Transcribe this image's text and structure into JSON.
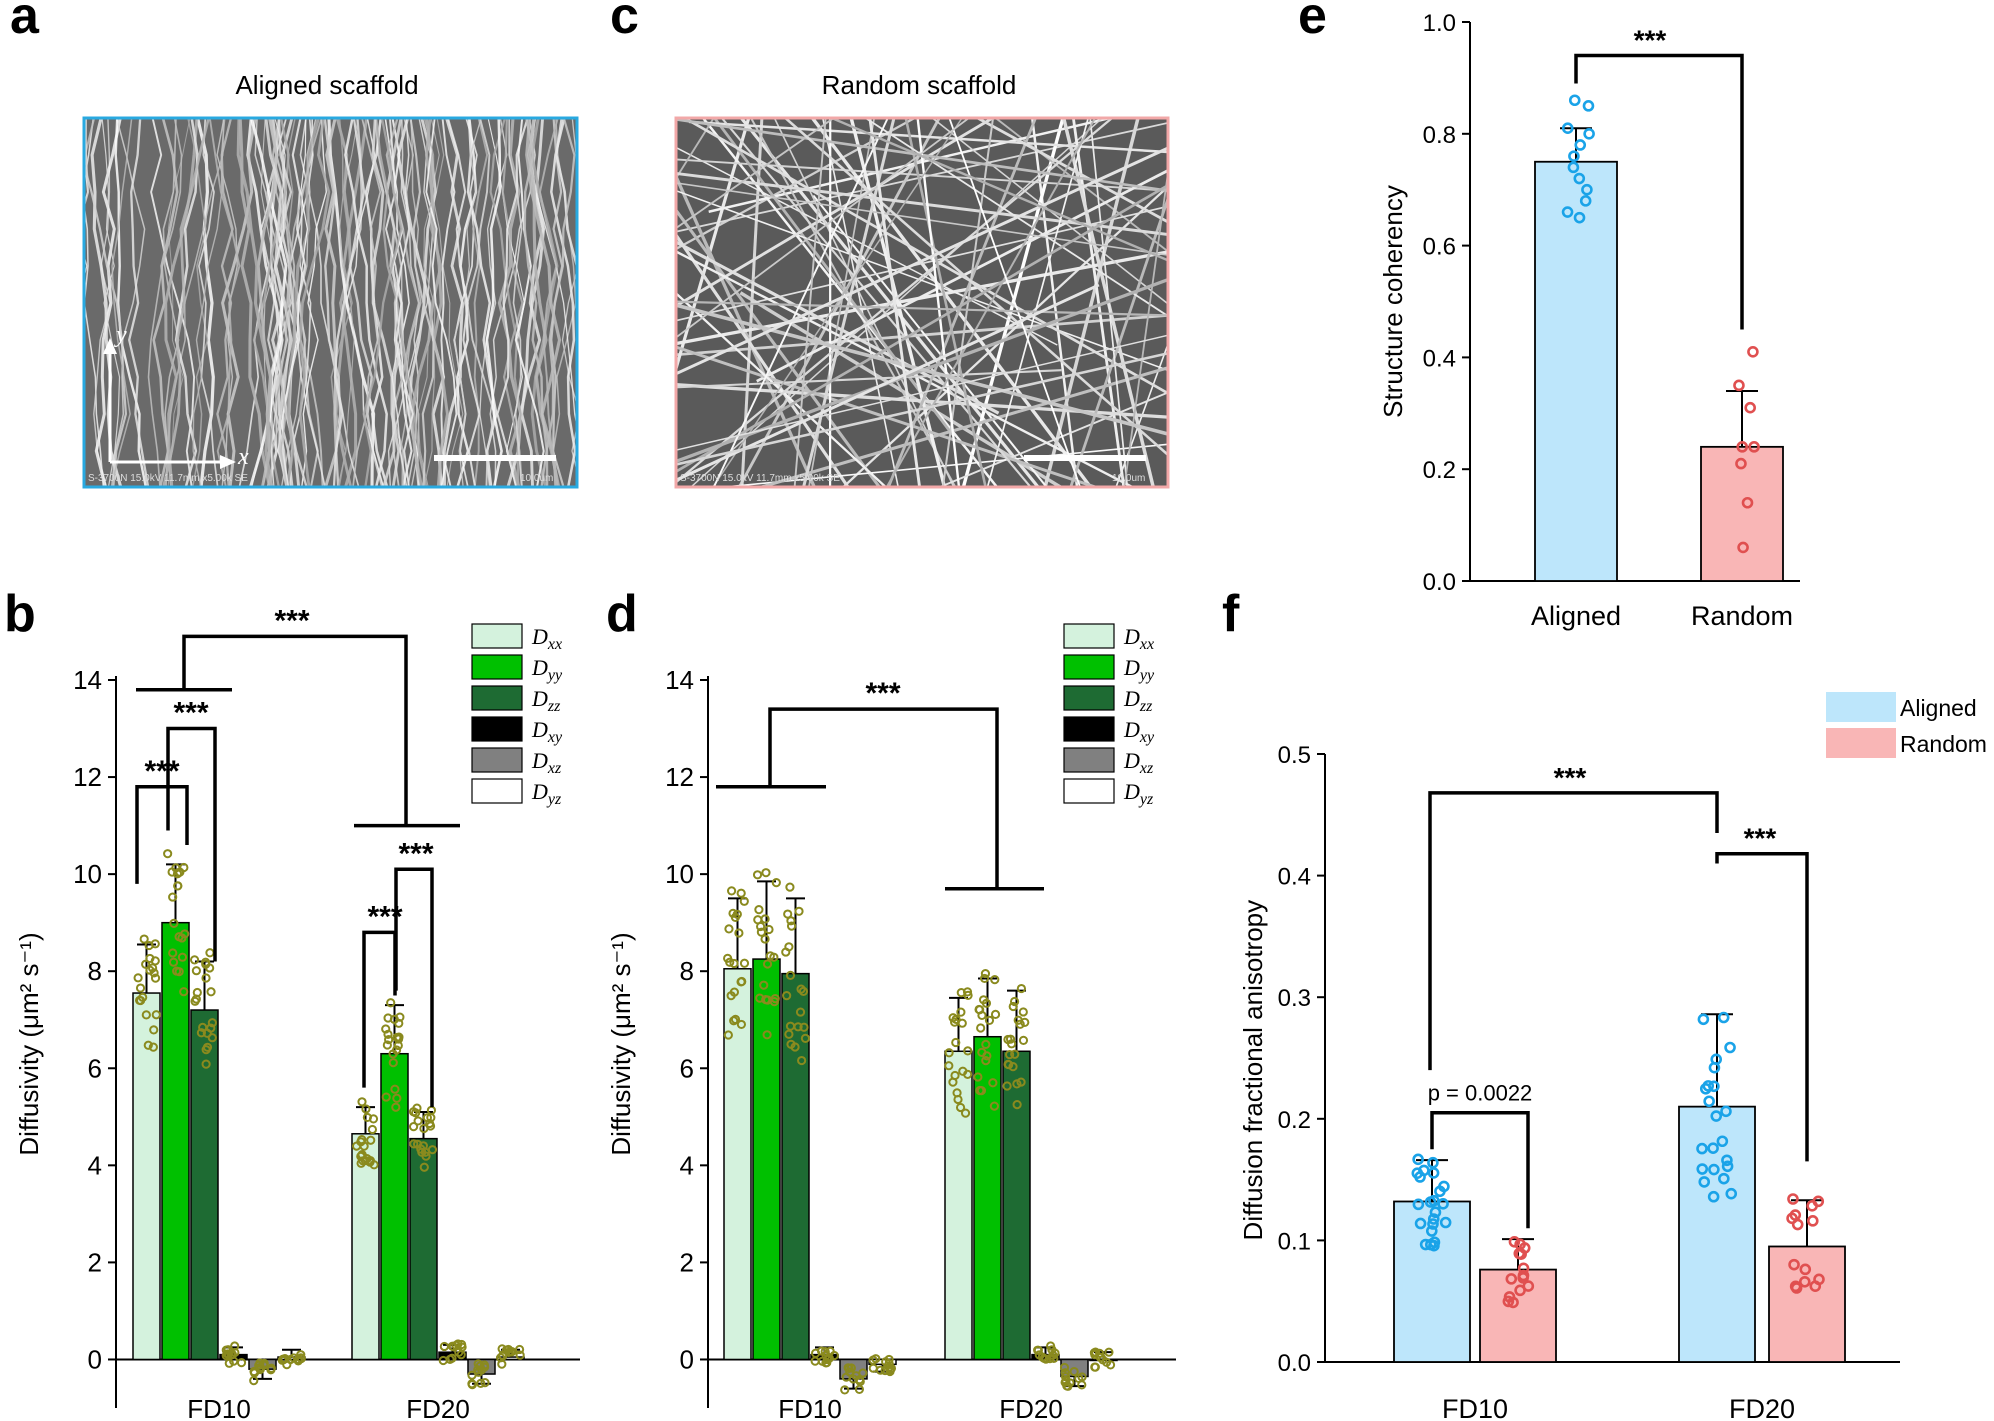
{
  "panels": {
    "a": {
      "letter": "a",
      "title": "Aligned scaffold",
      "x_label": "x",
      "y_label": "y",
      "sem_caption": "S-3700N 15.0kV 11.7mm x5.00k SE",
      "scale_text": "10.0um",
      "border_color": "#29a9e0"
    },
    "c": {
      "letter": "c",
      "title": "Random scaffold",
      "sem_caption": "S-3700N 15.0kV 11.7mm x5.00k SE",
      "scale_text": "10.0um",
      "border_color": "#f2a8a8"
    },
    "b": {
      "letter": "b"
    },
    "d": {
      "letter": "d"
    },
    "e": {
      "letter": "e"
    },
    "f": {
      "letter": "f"
    }
  },
  "legend_diffusivity": [
    {
      "base": "D",
      "sub": "xx",
      "color": "#d4f2dd"
    },
    {
      "base": "D",
      "sub": "yy",
      "color": "#00c000"
    },
    {
      "base": "D",
      "sub": "zz",
      "color": "#1e6b33"
    },
    {
      "base": "D",
      "sub": "xy",
      "color": "#000000"
    },
    {
      "base": "D",
      "sub": "xz",
      "color": "#808080"
    },
    {
      "base": "D",
      "sub": "yz",
      "color": "#ffffff"
    }
  ],
  "chart_data": [
    {
      "id": "b",
      "type": "bar",
      "ylabel": "Diffusivity (μm² s⁻¹)",
      "ylim": [
        -1,
        14
      ],
      "yticks": [
        0,
        2,
        4,
        6,
        8,
        10,
        12,
        14
      ],
      "categories": [
        "FD10",
        "FD20"
      ],
      "series": [
        {
          "name": "Dxx",
          "values": [
            7.55,
            4.65
          ],
          "errors": [
            1.0,
            0.55
          ]
        },
        {
          "name": "Dyy",
          "values": [
            9.0,
            6.3
          ],
          "errors": [
            1.2,
            1.0
          ]
        },
        {
          "name": "Dzz",
          "values": [
            7.2,
            4.55
          ],
          "errors": [
            1.0,
            0.55
          ]
        },
        {
          "name": "Dxy",
          "values": [
            0.1,
            0.15
          ],
          "errors": [
            0.15,
            0.15
          ]
        },
        {
          "name": "Dxz",
          "values": [
            -0.2,
            -0.3
          ],
          "errors": [
            0.2,
            0.2
          ]
        },
        {
          "name": "Dyz",
          "values": [
            0.05,
            0.05
          ],
          "errors": [
            0.15,
            0.15
          ]
        }
      ],
      "significance": [
        "***",
        "***",
        "***",
        "***",
        "***"
      ]
    },
    {
      "id": "d",
      "type": "bar",
      "ylabel": "Diffusivity (μm² s⁻¹)",
      "ylim": [
        -1,
        14
      ],
      "yticks": [
        0,
        2,
        4,
        6,
        8,
        10,
        12,
        14
      ],
      "categories": [
        "FD10",
        "FD20"
      ],
      "series": [
        {
          "name": "Dxx",
          "values": [
            8.05,
            6.35
          ],
          "errors": [
            1.45,
            1.1
          ]
        },
        {
          "name": "Dyy",
          "values": [
            8.25,
            6.65
          ],
          "errors": [
            1.6,
            1.2
          ]
        },
        {
          "name": "Dzz",
          "values": [
            7.95,
            6.35
          ],
          "errors": [
            1.55,
            1.25
          ]
        },
        {
          "name": "Dxy",
          "values": [
            0.1,
            0.1
          ],
          "errors": [
            0.15,
            0.15
          ]
        },
        {
          "name": "Dxz",
          "values": [
            -0.4,
            -0.35
          ],
          "errors": [
            0.2,
            0.2
          ]
        },
        {
          "name": "Dyz",
          "values": [
            -0.1,
            0.0
          ],
          "errors": [
            0.15,
            0.15
          ]
        }
      ],
      "significance": [
        "***"
      ]
    },
    {
      "id": "e",
      "type": "bar",
      "ylabel": "Structure coherency",
      "ylim": [
        0,
        1.0
      ],
      "yticks": [
        "0.0",
        "0.2",
        "0.4",
        "0.6",
        "0.8",
        "1.0"
      ],
      "categories": [
        "Aligned",
        "Random"
      ],
      "values": [
        0.75,
        0.24
      ],
      "errors": [
        0.06,
        0.1
      ],
      "colors": [
        "#bde6fb",
        "#f9b6b6"
      ],
      "points": [
        [
          0.86,
          0.85,
          0.81,
          0.8,
          0.78,
          0.76,
          0.74,
          0.72,
          0.7,
          0.68,
          0.66,
          0.65
        ],
        [
          0.41,
          0.35,
          0.31,
          0.24,
          0.24,
          0.21,
          0.14,
          0.06
        ]
      ],
      "significance": [
        "***"
      ]
    },
    {
      "id": "f",
      "type": "bar",
      "ylabel": "Diffusion fractional anisotropy",
      "ylim": [
        0,
        0.5
      ],
      "yticks": [
        "0.0",
        "0.1",
        "0.2",
        "0.3",
        "0.4",
        "0.5"
      ],
      "categories": [
        "FD10",
        "FD20"
      ],
      "legend": [
        {
          "name": "Aligned",
          "color": "#bde6fb"
        },
        {
          "name": "Random",
          "color": "#f9b6b6"
        }
      ],
      "series": [
        {
          "name": "Aligned",
          "values": [
            0.132,
            0.21
          ],
          "errors": [
            0.034,
            0.076
          ]
        },
        {
          "name": "Random",
          "values": [
            0.076,
            0.095
          ],
          "errors": [
            0.025,
            0.038
          ]
        }
      ],
      "significance": [
        "p = 0.0022",
        "***",
        "***"
      ]
    }
  ]
}
